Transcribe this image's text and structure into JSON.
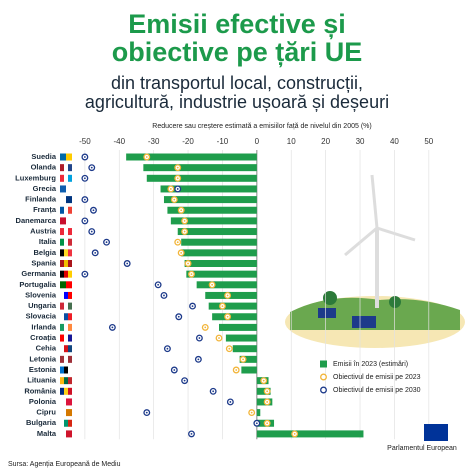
{
  "chart_data": {
    "type": "bar",
    "title_lines": [
      "Emisii efective și",
      "obiective pe țări UE"
    ],
    "subtitle_lines": [
      "din transportul local, construcții,",
      "agricultură, industrie ușoară și deșeuri"
    ],
    "axis_title": "Reducere sau creștere estimată a emisiilor față de nivelul din 2005 (%)",
    "source": "Sursa: Agenția Europeană de Mediu",
    "logo": "Parlamentul European",
    "categories": [
      "Suedia",
      "Olanda",
      "Luxemburg",
      "Grecia",
      "Finlanda",
      "Franța",
      "Danemarca",
      "Austria",
      "Italia",
      "Belgia",
      "Spania",
      "Germania",
      "Portugalia",
      "Slovenia",
      "Ungaria",
      "Slovacia",
      "Irlanda",
      "Croația",
      "Cehia",
      "Letonia",
      "Estonia",
      "Lituania",
      "România",
      "Polonia",
      "Cipru",
      "Bulgaria",
      "Malta"
    ],
    "series": [
      {
        "name": "Emisii în 2023 (estimări)",
        "mark": "bar",
        "color": "#1f9d4c",
        "values": [
          -38,
          -33,
          -32,
          -28,
          -27,
          -26,
          -25,
          -23,
          -22,
          -22,
          -21,
          -20.5,
          -17.5,
          -15,
          -14,
          -13,
          -11,
          -9,
          -7,
          -5,
          -4.5,
          3.4,
          4,
          4.5,
          1,
          5,
          31
        ]
      },
      {
        "name": "Obiectivul de emisii pe 2023",
        "mark": "circle",
        "color": "#f2b53a",
        "values": [
          -32,
          -23,
          -23,
          -25,
          -24,
          -22,
          -21,
          -21,
          -23,
          -22,
          -20,
          -19,
          -13,
          -8.5,
          -10,
          -8.5,
          -15,
          -11,
          -8,
          -4,
          -6,
          2,
          3,
          3,
          -1.5,
          3,
          11
        ]
      },
      {
        "name": "Obiectivul de emisii pe 2030",
        "mark": "circle",
        "color": "#1d3a8a",
        "values": [
          -50,
          -48,
          -50,
          -23,
          -50,
          -47.5,
          -50,
          -48,
          -43.7,
          -47,
          -37.7,
          -50,
          -28.7,
          -27,
          -18.7,
          -22.7,
          -42,
          -16.7,
          -26,
          -17,
          -24,
          -21,
          -12.7,
          -7.7,
          -32,
          0,
          -19
        ]
      }
    ],
    "xlim": [
      -52,
      55
    ],
    "xticks": [
      -50,
      -40,
      -30,
      -20,
      -10,
      0,
      10,
      20,
      30,
      40,
      50
    ],
    "grid": true
  }
}
